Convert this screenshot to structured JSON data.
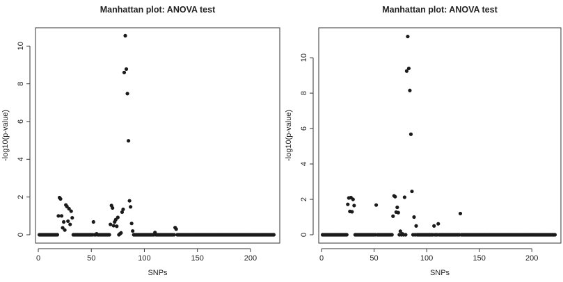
{
  "chart_data": [
    {
      "type": "scatter",
      "title": "Manhattan plot: ANOVA test",
      "xlabel": "SNPs",
      "ylabel": "-log10(p-value)",
      "xlim": [
        0,
        225
      ],
      "ylim": [
        0,
        10.6
      ],
      "xticks": [
        0,
        50,
        100,
        150,
        200
      ],
      "yticks": [
        0,
        2,
        4,
        6,
        8,
        10
      ],
      "grid": false,
      "legend": "none",
      "n_points": 222,
      "nonzero_points": [
        [
          19,
          1.0
        ],
        [
          20,
          1.97
        ],
        [
          21,
          1.9
        ],
        [
          22,
          1.0
        ],
        [
          23,
          0.37
        ],
        [
          24,
          0.68
        ],
        [
          25,
          0.25
        ],
        [
          26,
          1.58
        ],
        [
          27,
          1.5
        ],
        [
          28,
          0.72
        ],
        [
          29,
          1.38
        ],
        [
          30,
          0.55
        ],
        [
          31,
          1.25
        ],
        [
          32,
          0.9
        ],
        [
          52,
          0.68
        ],
        [
          55,
          0.05
        ],
        [
          68,
          0.55
        ],
        [
          69,
          1.55
        ],
        [
          70,
          1.42
        ],
        [
          71,
          0.48
        ],
        [
          72,
          0.68
        ],
        [
          73,
          0.8
        ],
        [
          74,
          0.45
        ],
        [
          75,
          0.92
        ],
        [
          77,
          0.05
        ],
        [
          78,
          0.1
        ],
        [
          79,
          1.2
        ],
        [
          80,
          1.35
        ],
        [
          81,
          8.6
        ],
        [
          82,
          10.55
        ],
        [
          83,
          8.78
        ],
        [
          84,
          7.48
        ],
        [
          85,
          4.98
        ],
        [
          86,
          1.8
        ],
        [
          87,
          1.48
        ],
        [
          88,
          0.6
        ],
        [
          89,
          0.2
        ],
        [
          110,
          0.12
        ],
        [
          129,
          0.38
        ],
        [
          130,
          0.3
        ]
      ]
    },
    {
      "type": "scatter",
      "title": "Manhattan plot: ANOVA test",
      "xlabel": "SNPs",
      "ylabel": "-log10(p-value)",
      "xlim": [
        0,
        225
      ],
      "ylim": [
        0,
        11.3
      ],
      "xticks": [
        0,
        50,
        100,
        150,
        200
      ],
      "yticks": [
        0,
        2,
        4,
        6,
        8,
        10
      ],
      "grid": false,
      "legend": "none",
      "n_points": 222,
      "nonzero_points": [
        [
          25,
          1.72
        ],
        [
          26,
          2.08
        ],
        [
          27,
          1.32
        ],
        [
          28,
          2.1
        ],
        [
          29,
          1.3
        ],
        [
          30,
          2.0
        ],
        [
          31,
          1.65
        ],
        [
          52,
          1.68
        ],
        [
          68,
          1.05
        ],
        [
          69,
          2.2
        ],
        [
          70,
          2.15
        ],
        [
          71,
          1.28
        ],
        [
          72,
          1.55
        ],
        [
          73,
          1.25
        ],
        [
          75,
          0.2
        ],
        [
          77,
          0.05
        ],
        [
          79,
          2.12
        ],
        [
          81,
          9.25
        ],
        [
          82,
          11.2
        ],
        [
          83,
          9.4
        ],
        [
          84,
          8.15
        ],
        [
          85,
          5.68
        ],
        [
          86,
          2.45
        ],
        [
          88,
          1.0
        ],
        [
          90,
          0.5
        ],
        [
          107,
          0.5
        ],
        [
          111,
          0.62
        ],
        [
          132,
          1.2
        ]
      ]
    }
  ]
}
